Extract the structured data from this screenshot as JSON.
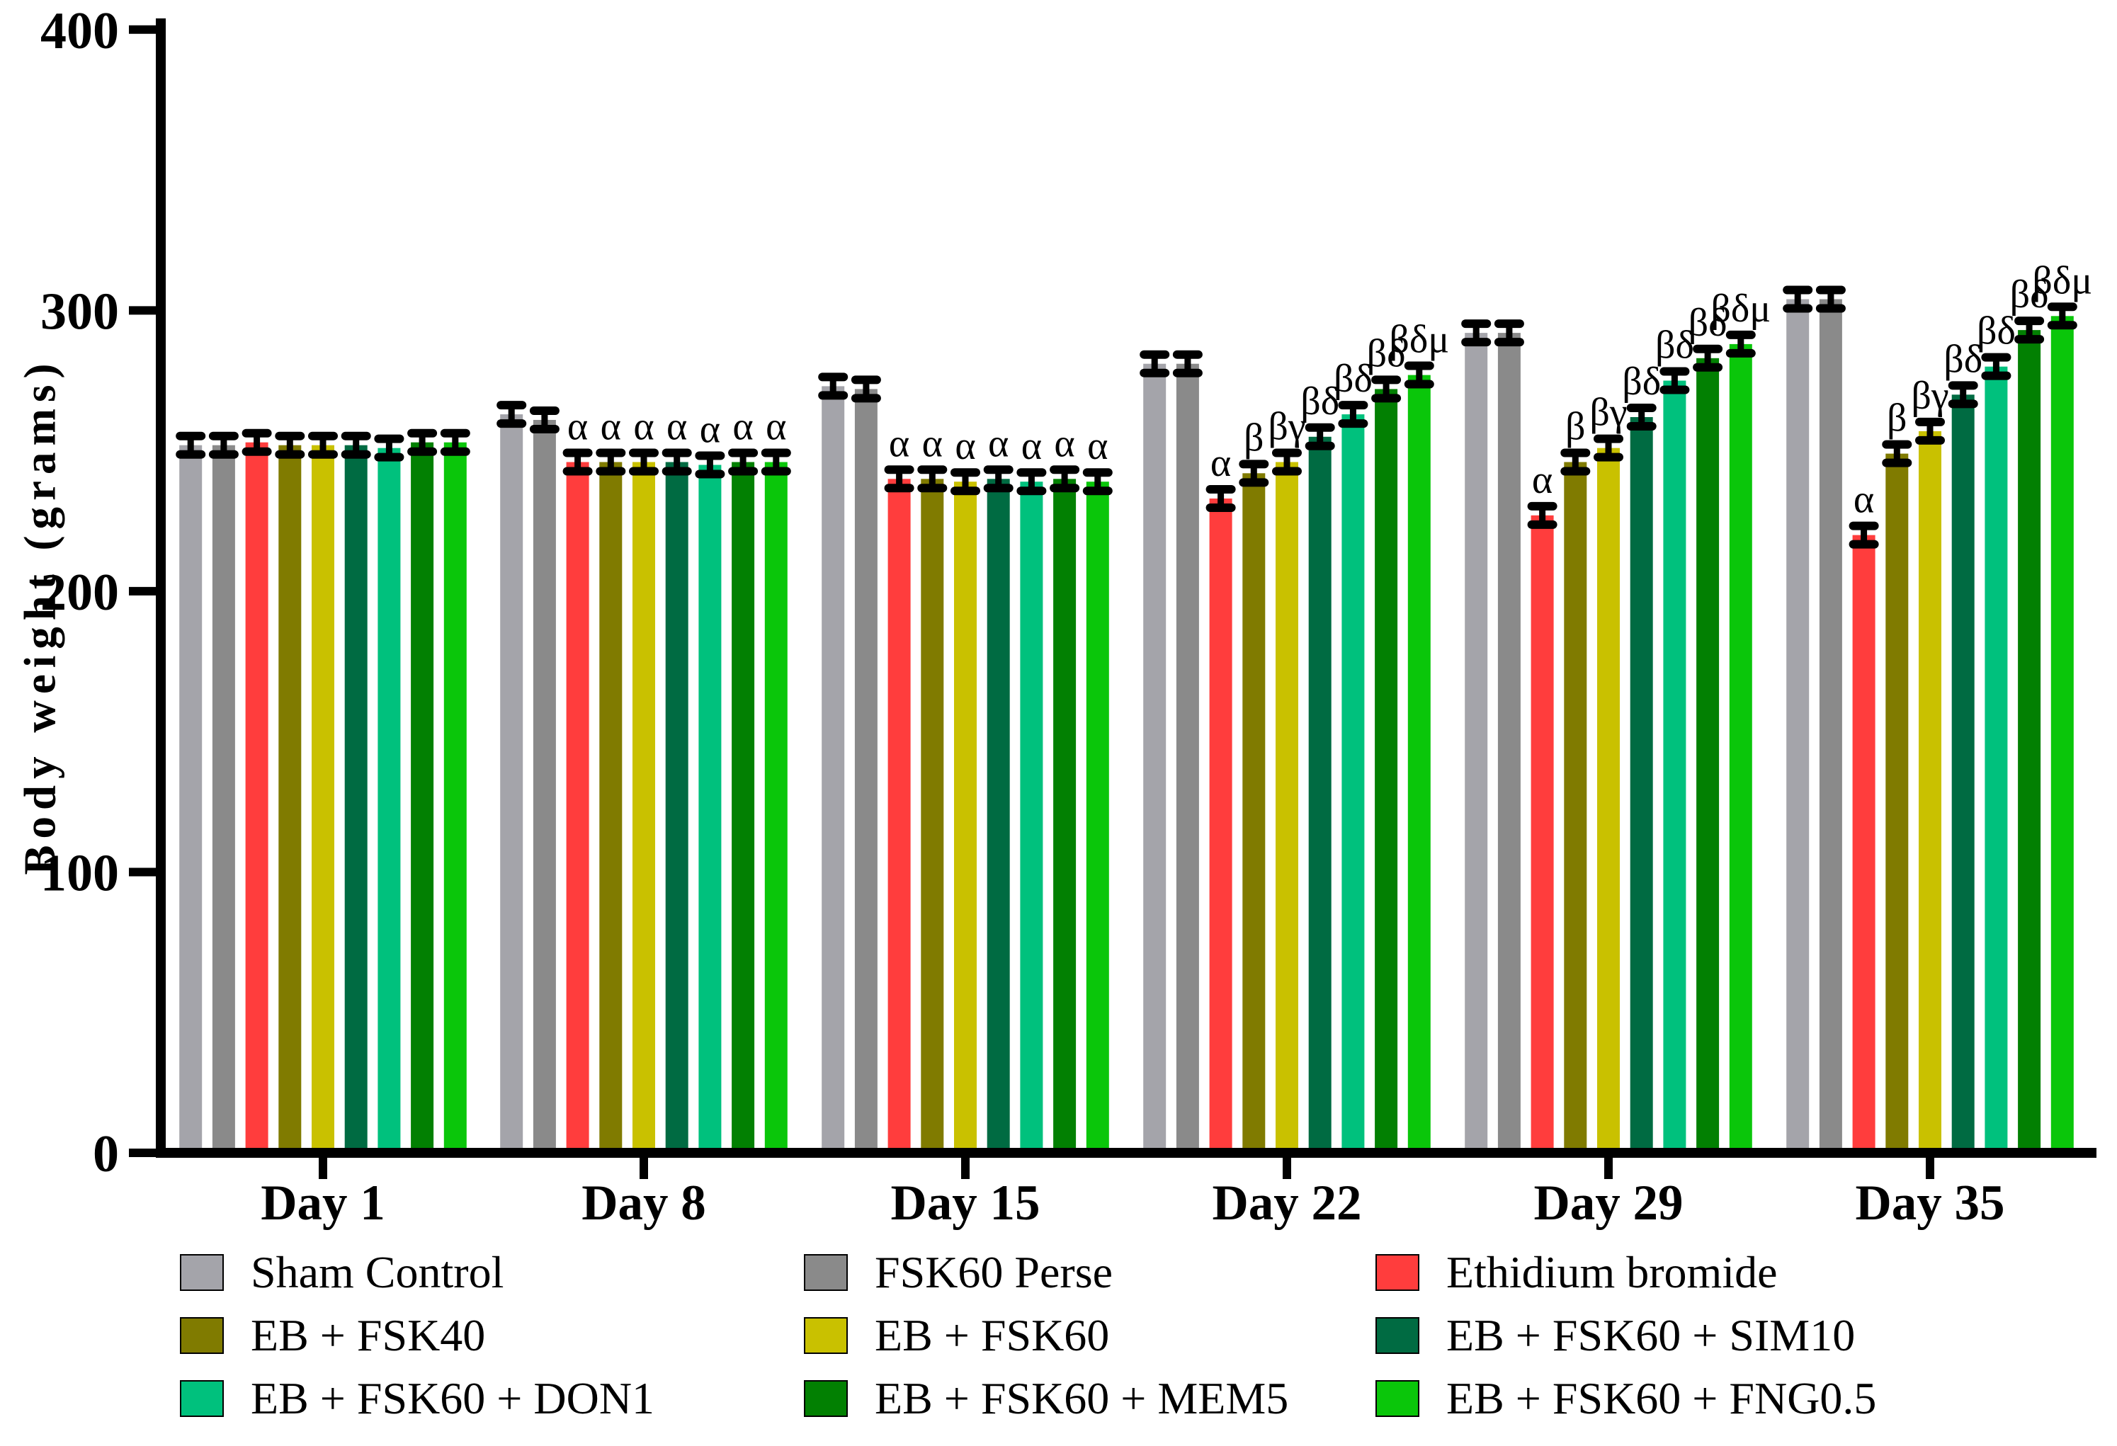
{
  "chart_data": {
    "type": "bar",
    "title": "",
    "xlabel": "",
    "ylabel": "Body weight (grams)",
    "ylim": [
      0,
      400
    ],
    "yticks": [
      0,
      100,
      200,
      300,
      400
    ],
    "categories": [
      "Day 1",
      "Day 8",
      "Day 15",
      "Day 22",
      "Day 29",
      "Day 35"
    ],
    "grid": false,
    "error_bars": true,
    "sem_grams_approx": 3,
    "legend_position": "bottom",
    "series": [
      {
        "name": "Sham Control",
        "color": "#a4a4aa",
        "values": [
          252,
          263,
          273,
          281,
          292,
          304
        ],
        "annotations": [
          "",
          "",
          "",
          "",
          "",
          ""
        ]
      },
      {
        "name": "FSK60 Perse",
        "color": "#8a8a8a",
        "values": [
          252,
          261,
          272,
          281,
          292,
          304
        ],
        "annotations": [
          "",
          "",
          "",
          "",
          "",
          ""
        ]
      },
      {
        "name": "Ethidium bromide",
        "color": "#ff3d3d",
        "values": [
          253,
          246,
          240,
          233,
          227,
          220
        ],
        "annotations": [
          "",
          "α",
          "α",
          "α",
          "α",
          "α"
        ]
      },
      {
        "name": "EB + FSK40",
        "color": "#807b00",
        "values": [
          252,
          246,
          240,
          242,
          246,
          249
        ],
        "annotations": [
          "",
          "α",
          "α",
          "β",
          "β",
          "β"
        ]
      },
      {
        "name": "EB + FSK60",
        "color": "#c9c100",
        "values": [
          252,
          246,
          239,
          246,
          251,
          257
        ],
        "annotations": [
          "",
          "α",
          "α",
          "βγ",
          "βγ",
          "βγ"
        ]
      },
      {
        "name": "EB + FSK60 + SIM10",
        "color": "#006b42",
        "values": [
          252,
          246,
          240,
          255,
          262,
          270
        ],
        "annotations": [
          "",
          "α",
          "α",
          "βδ",
          "βδ",
          "βδ"
        ]
      },
      {
        "name": "EB + FSK60 + DON1",
        "color": "#00c17d",
        "values": [
          251,
          245,
          239,
          263,
          275,
          280
        ],
        "annotations": [
          "",
          "α",
          "α",
          "βδ",
          "βδ",
          "βδ"
        ]
      },
      {
        "name": "EB + FSK60 + MEM5",
        "color": "#028002",
        "values": [
          253,
          246,
          240,
          272,
          283,
          293
        ],
        "annotations": [
          "",
          "α",
          "α",
          "βδ",
          "βδ",
          "βδ"
        ]
      },
      {
        "name": "EB + FSK60 + FNG0.5",
        "color": "#0ac60a",
        "values": [
          253,
          246,
          239,
          277,
          288,
          298
        ],
        "annotations": [
          "",
          "α",
          "α",
          "βδμ",
          "βδμ",
          "βδμ"
        ]
      }
    ]
  }
}
